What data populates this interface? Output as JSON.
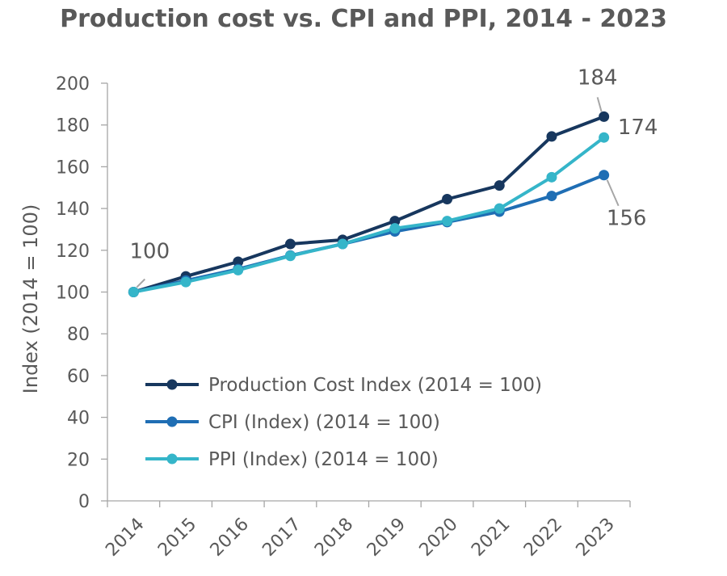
{
  "chart_data": {
    "type": "line",
    "title": "Production cost vs. CPI and PPI, 2014 - 2023",
    "xlabel": "",
    "ylabel": "Index (2014 = 100)",
    "categories": [
      "2014",
      "2015",
      "2016",
      "2017",
      "2018",
      "2019",
      "2020",
      "2021",
      "2022",
      "2023"
    ],
    "ylim": [
      0,
      200
    ],
    "yticks": [
      "0",
      "20",
      "40",
      "60",
      "80",
      "100",
      "120",
      "140",
      "160",
      "180",
      "200"
    ],
    "grid": false,
    "legend_position": "bottom-left (inside plot)",
    "series": [
      {
        "name": "Production Cost Index (2014 = 100)",
        "color": "#17375e",
        "values": [
          100,
          107.5,
          114.5,
          123,
          125,
          134,
          144.5,
          151,
          174.5,
          184
        ]
      },
      {
        "name": "CPI (Index) (2014 = 100)",
        "color": "#1f6eb4",
        "values": [
          100,
          105.5,
          111,
          117.5,
          123,
          129,
          133.5,
          138.5,
          146,
          156
        ]
      },
      {
        "name": "PPI (Index) (2014 = 100)",
        "color": "#35b5c9",
        "values": [
          100,
          104.8,
          110.5,
          117.3,
          123,
          130.5,
          134,
          140,
          155,
          174
        ]
      }
    ],
    "annotations": [
      {
        "text": "100",
        "series": 0,
        "point": 0
      },
      {
        "text": "184",
        "series": 0,
        "point": 9
      },
      {
        "text": "174",
        "series": 2,
        "point": 9
      },
      {
        "text": "156",
        "series": 1,
        "point": 9
      }
    ]
  }
}
